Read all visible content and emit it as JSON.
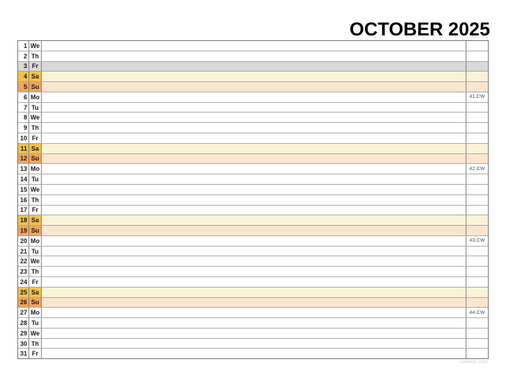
{
  "title": "OCTOBER 2025",
  "watermark": "calenio.com",
  "colors": {
    "sat-cell": "#efc050",
    "sat-row": "#faf3d8",
    "sun-cell": "#efa55f",
    "sun-row": "#fae6d0",
    "holiday-row": "#d9d9d9",
    "border-outer": "#6e6e6e",
    "border-col": "#7d7d7d",
    "border-row": "#a6a6a6"
  },
  "days": [
    {
      "num": "1",
      "abbr": "We",
      "type": "weekday",
      "cw": ""
    },
    {
      "num": "2",
      "abbr": "Th",
      "type": "weekday",
      "cw": ""
    },
    {
      "num": "3",
      "abbr": "Fr",
      "type": "holiday",
      "cw": ""
    },
    {
      "num": "4",
      "abbr": "Sa",
      "type": "saturday",
      "cw": ""
    },
    {
      "num": "5",
      "abbr": "Su",
      "type": "sunday",
      "cw": ""
    },
    {
      "num": "6",
      "abbr": "Mo",
      "type": "weekday",
      "cw": "41.CW"
    },
    {
      "num": "7",
      "abbr": "Tu",
      "type": "weekday",
      "cw": ""
    },
    {
      "num": "8",
      "abbr": "We",
      "type": "weekday",
      "cw": ""
    },
    {
      "num": "9",
      "abbr": "Th",
      "type": "weekday",
      "cw": ""
    },
    {
      "num": "10",
      "abbr": "Fr",
      "type": "weekday",
      "cw": ""
    },
    {
      "num": "11",
      "abbr": "Sa",
      "type": "saturday",
      "cw": ""
    },
    {
      "num": "12",
      "abbr": "Su",
      "type": "sunday",
      "cw": ""
    },
    {
      "num": "13",
      "abbr": "Mo",
      "type": "weekday",
      "cw": "42.CW"
    },
    {
      "num": "14",
      "abbr": "Tu",
      "type": "weekday",
      "cw": ""
    },
    {
      "num": "15",
      "abbr": "We",
      "type": "weekday",
      "cw": ""
    },
    {
      "num": "16",
      "abbr": "Th",
      "type": "weekday",
      "cw": ""
    },
    {
      "num": "17",
      "abbr": "Fr",
      "type": "weekday",
      "cw": ""
    },
    {
      "num": "18",
      "abbr": "Sa",
      "type": "saturday",
      "cw": ""
    },
    {
      "num": "19",
      "abbr": "Su",
      "type": "sunday",
      "cw": ""
    },
    {
      "num": "20",
      "abbr": "Mo",
      "type": "weekday",
      "cw": "43.CW"
    },
    {
      "num": "21",
      "abbr": "Tu",
      "type": "weekday",
      "cw": ""
    },
    {
      "num": "22",
      "abbr": "We",
      "type": "weekday",
      "cw": ""
    },
    {
      "num": "23",
      "abbr": "Th",
      "type": "weekday",
      "cw": ""
    },
    {
      "num": "24",
      "abbr": "Fr",
      "type": "weekday",
      "cw": ""
    },
    {
      "num": "25",
      "abbr": "Sa",
      "type": "saturday",
      "cw": ""
    },
    {
      "num": "26",
      "abbr": "Su",
      "type": "sunday",
      "cw": ""
    },
    {
      "num": "27",
      "abbr": "Mo",
      "type": "weekday",
      "cw": "44.CW"
    },
    {
      "num": "28",
      "abbr": "Tu",
      "type": "weekday",
      "cw": ""
    },
    {
      "num": "29",
      "abbr": "We",
      "type": "weekday",
      "cw": ""
    },
    {
      "num": "30",
      "abbr": "Th",
      "type": "weekday",
      "cw": ""
    },
    {
      "num": "31",
      "abbr": "Fr",
      "type": "weekday",
      "cw": ""
    }
  ]
}
